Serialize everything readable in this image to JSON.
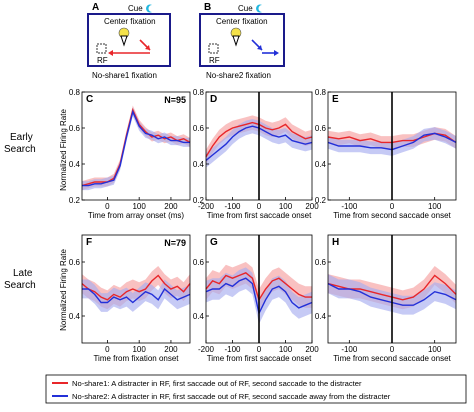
{
  "schematics": [
    {
      "panel": "A",
      "cue_label": "Cue",
      "fixation_label": "Center fixation",
      "rf_label": "RF",
      "caption": "No-share1 fixation",
      "arrow_color": "#e8262a"
    },
    {
      "panel": "B",
      "cue_label": "Cue",
      "fixation_label": "Center fixation",
      "rf_label": "RF",
      "caption": "No-share2 fixation",
      "arrow_color": "#2330d8"
    }
  ],
  "rows": [
    {
      "label_line1": "Early",
      "label_line2": "Search"
    },
    {
      "label_line1": "Late",
      "label_line2": "Search"
    }
  ],
  "ylabel": "Normalized Firing Rate",
  "colors": {
    "no_share1": "#e8262a",
    "no_share2": "#2330d8",
    "no_share1_band": "#f6a0a0",
    "no_share2_band": "#a8aef0"
  },
  "legend": {
    "items": [
      {
        "color": "#e8262a",
        "text": "No-share1: A distracter in RF, first saccade out of RF, second saccade to the distracter"
      },
      {
        "color": "#2330d8",
        "text": "No-share2: A distracter in RF, first saccade out of RF, second saccade away from the distracter"
      }
    ]
  },
  "chart_data": [
    {
      "panel": "C",
      "type": "line",
      "n_label": "N=95",
      "xlabel": "Time from array onset (ms)",
      "xlim": [
        -80,
        260
      ],
      "ylim": [
        0.2,
        0.8
      ],
      "xticks": [
        0,
        100,
        200
      ],
      "yticks": [
        0.2,
        0.4,
        0.6,
        0.8
      ],
      "vline": null,
      "x": [
        -80,
        -60,
        -40,
        -20,
        0,
        20,
        40,
        60,
        80,
        100,
        120,
        140,
        160,
        180,
        200,
        220,
        240,
        260
      ],
      "series": [
        {
          "name": "No-share1",
          "values": [
            0.28,
            0.29,
            0.3,
            0.3,
            0.3,
            0.32,
            0.4,
            0.56,
            0.7,
            0.62,
            0.58,
            0.55,
            0.56,
            0.54,
            0.55,
            0.53,
            0.54,
            0.52
          ],
          "err": 0.025
        },
        {
          "name": "No-share2",
          "values": [
            0.28,
            0.28,
            0.29,
            0.29,
            0.3,
            0.31,
            0.39,
            0.55,
            0.69,
            0.61,
            0.57,
            0.56,
            0.54,
            0.55,
            0.53,
            0.53,
            0.52,
            0.52
          ],
          "err": 0.025
        }
      ]
    },
    {
      "panel": "D",
      "type": "line",
      "n_label": "",
      "xlabel": "Time from first saccade onset",
      "xlim": [
        -200,
        200
      ],
      "ylim": [
        0.2,
        0.8
      ],
      "xticks": [
        -200,
        -100,
        0,
        100,
        200
      ],
      "yticks": [
        0.2,
        0.4,
        0.6,
        0.8
      ],
      "vline": 0,
      "x": [
        -200,
        -175,
        -150,
        -125,
        -100,
        -75,
        -50,
        -25,
        0,
        25,
        50,
        75,
        100,
        125,
        150,
        175,
        200
      ],
      "series": [
        {
          "name": "No-share1",
          "values": [
            0.44,
            0.5,
            0.55,
            0.58,
            0.6,
            0.61,
            0.62,
            0.63,
            0.62,
            0.6,
            0.59,
            0.6,
            0.62,
            0.58,
            0.56,
            0.54,
            0.55
          ],
          "err": 0.04
        },
        {
          "name": "No-share2",
          "values": [
            0.42,
            0.45,
            0.48,
            0.51,
            0.55,
            0.58,
            0.6,
            0.61,
            0.6,
            0.58,
            0.56,
            0.55,
            0.56,
            0.53,
            0.52,
            0.51,
            0.52
          ],
          "err": 0.04
        }
      ]
    },
    {
      "panel": "E",
      "type": "line",
      "n_label": "",
      "xlabel": "Time from second saccade onset",
      "xlim": [
        -150,
        150
      ],
      "ylim": [
        0.2,
        0.8
      ],
      "xticks": [
        -100,
        0,
        100
      ],
      "yticks": [
        0.2,
        0.4,
        0.6,
        0.8
      ],
      "vline": 0,
      "x": [
        -150,
        -125,
        -100,
        -75,
        -50,
        -25,
        0,
        25,
        50,
        75,
        100,
        125,
        150
      ],
      "series": [
        {
          "name": "No-share1",
          "values": [
            0.55,
            0.54,
            0.55,
            0.53,
            0.54,
            0.52,
            0.52,
            0.53,
            0.53,
            0.55,
            0.57,
            0.56,
            0.52
          ],
          "err": 0.035
        },
        {
          "name": "No-share2",
          "values": [
            0.52,
            0.5,
            0.5,
            0.5,
            0.49,
            0.49,
            0.48,
            0.5,
            0.52,
            0.56,
            0.57,
            0.55,
            0.52
          ],
          "err": 0.035
        }
      ]
    },
    {
      "panel": "F",
      "type": "line",
      "n_label": "N=79",
      "xlabel": "Time from fixation onset",
      "xlim": [
        -80,
        260
      ],
      "ylim": [
        0.3,
        0.7
      ],
      "xticks": [
        0,
        100,
        200
      ],
      "yticks": [
        0.4,
        0.6
      ],
      "vline": null,
      "x": [
        -80,
        -60,
        -40,
        -20,
        0,
        20,
        40,
        60,
        80,
        100,
        120,
        140,
        160,
        180,
        200,
        220,
        240,
        260
      ],
      "series": [
        {
          "name": "No-share1",
          "values": [
            0.52,
            0.5,
            0.49,
            0.47,
            0.46,
            0.48,
            0.47,
            0.49,
            0.5,
            0.49,
            0.5,
            0.53,
            0.55,
            0.52,
            0.5,
            0.51,
            0.49,
            0.52
          ],
          "err": 0.035
        },
        {
          "name": "No-share2",
          "values": [
            0.5,
            0.5,
            0.48,
            0.45,
            0.45,
            0.47,
            0.46,
            0.47,
            0.45,
            0.47,
            0.49,
            0.48,
            0.46,
            0.5,
            0.48,
            0.46,
            0.47,
            0.48
          ],
          "err": 0.035
        }
      ]
    },
    {
      "panel": "G",
      "type": "line",
      "n_label": "",
      "xlabel": "Time from first saccade onset",
      "xlim": [
        -200,
        200
      ],
      "ylim": [
        0.3,
        0.7
      ],
      "xticks": [
        -200,
        -100,
        0,
        100,
        200
      ],
      "yticks": [
        0.4,
        0.6
      ],
      "vline": 0,
      "x": [
        -200,
        -175,
        -150,
        -125,
        -100,
        -75,
        -50,
        -25,
        0,
        25,
        50,
        75,
        100,
        125,
        150,
        175,
        200
      ],
      "series": [
        {
          "name": "No-share1",
          "values": [
            0.5,
            0.53,
            0.52,
            0.55,
            0.54,
            0.55,
            0.56,
            0.54,
            0.46,
            0.5,
            0.53,
            0.54,
            0.52,
            0.5,
            0.48,
            0.47,
            0.47
          ],
          "err": 0.04
        },
        {
          "name": "No-share2",
          "values": [
            0.49,
            0.5,
            0.5,
            0.52,
            0.51,
            0.53,
            0.54,
            0.52,
            0.41,
            0.46,
            0.5,
            0.51,
            0.49,
            0.45,
            0.43,
            0.44,
            0.45
          ],
          "err": 0.04
        }
      ]
    },
    {
      "panel": "H",
      "type": "line",
      "n_label": "",
      "xlabel": "Time from second saccade onset",
      "xlim": [
        -150,
        150
      ],
      "ylim": [
        0.3,
        0.7
      ],
      "xticks": [
        -100,
        0,
        100
      ],
      "yticks": [
        0.4,
        0.6
      ],
      "vline": 0,
      "x": [
        -150,
        -125,
        -100,
        -75,
        -50,
        -25,
        0,
        25,
        50,
        75,
        100,
        125,
        150
      ],
      "series": [
        {
          "name": "No-share1",
          "values": [
            0.52,
            0.51,
            0.5,
            0.5,
            0.49,
            0.48,
            0.47,
            0.46,
            0.47,
            0.5,
            0.55,
            0.52,
            0.48
          ],
          "err": 0.035
        },
        {
          "name": "No-share2",
          "values": [
            0.52,
            0.5,
            0.5,
            0.49,
            0.47,
            0.46,
            0.45,
            0.44,
            0.44,
            0.46,
            0.49,
            0.48,
            0.46
          ],
          "err": 0.035
        }
      ]
    }
  ]
}
